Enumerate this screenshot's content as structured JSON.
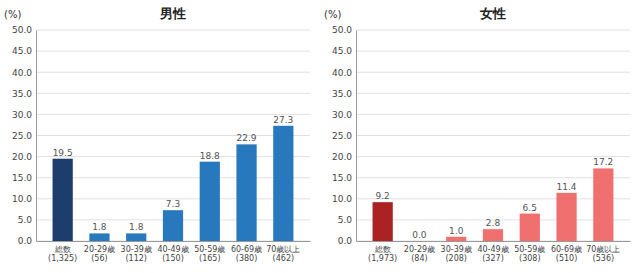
{
  "chart_data": [
    {
      "type": "bar",
      "title": "男性",
      "categories": [
        "総数\n(1,325)",
        "20-29歳\n(56)",
        "30-39歳\n(112)",
        "40-49歳\n(150)",
        "50-59歳\n(165)",
        "60-69歳\n(380)",
        "70歳以上\n(462)"
      ],
      "values": [
        19.5,
        1.8,
        1.8,
        7.3,
        18.8,
        22.9,
        27.3
      ],
      "value_labels": [
        "19.5",
        "1.8",
        "1.8",
        "7.3",
        "18.8",
        "22.9",
        "27.3"
      ],
      "colors": [
        "#1c3d6e",
        "#2878be",
        "#2878be",
        "#2878be",
        "#2878be",
        "#2878be",
        "#2878be"
      ],
      "ylabel": "(%)",
      "ylim": [
        0,
        50
      ],
      "yticks": [
        {
          "value": 0,
          "label": "0.0"
        },
        {
          "value": 5,
          "label": "5.0"
        },
        {
          "value": 10,
          "label": "10.0"
        },
        {
          "value": 15,
          "label": "15.0"
        },
        {
          "value": 20,
          "label": "20.0"
        },
        {
          "value": 25,
          "label": "25.0"
        },
        {
          "value": 30,
          "label": "30.0"
        },
        {
          "value": 35,
          "label": "35.0"
        },
        {
          "value": 40,
          "label": "40.0"
        },
        {
          "value": 45,
          "label": "45.0"
        },
        {
          "value": 50,
          "label": "50.0"
        }
      ],
      "grid": true,
      "data_labels": true
    },
    {
      "type": "bar",
      "title": "女性",
      "categories": [
        "総数\n(1,973)",
        "20-29歳\n(84)",
        "30-39歳\n(208)",
        "40-49歳\n(327)",
        "50-59歳\n(308)",
        "60-69歳\n(510)",
        "70歳以上\n(536)"
      ],
      "values": [
        9.2,
        0.0,
        1.0,
        2.8,
        6.5,
        11.4,
        17.2
      ],
      "value_labels": [
        "9.2",
        "0.0",
        "1.0",
        "2.8",
        "6.5",
        "11.4",
        "17.2"
      ],
      "colors": [
        "#aa2222",
        "#f07070",
        "#f07070",
        "#f07070",
        "#f07070",
        "#f07070",
        "#f07070"
      ],
      "ylabel": "(%)",
      "ylim": [
        0,
        50
      ],
      "yticks": [
        {
          "value": 0,
          "label": "0.0"
        },
        {
          "value": 5,
          "label": "5.0"
        },
        {
          "value": 10,
          "label": "10.0"
        },
        {
          "value": 15,
          "label": "15.0"
        },
        {
          "value": 20,
          "label": "20.0"
        },
        {
          "value": 25,
          "label": "25.0"
        },
        {
          "value": 30,
          "label": "30.0"
        },
        {
          "value": 35,
          "label": "35.0"
        },
        {
          "value": 40,
          "label": "40.0"
        },
        {
          "value": 45,
          "label": "45.0"
        },
        {
          "value": 50,
          "label": "50.0"
        }
      ],
      "grid": true,
      "data_labels": true
    }
  ]
}
